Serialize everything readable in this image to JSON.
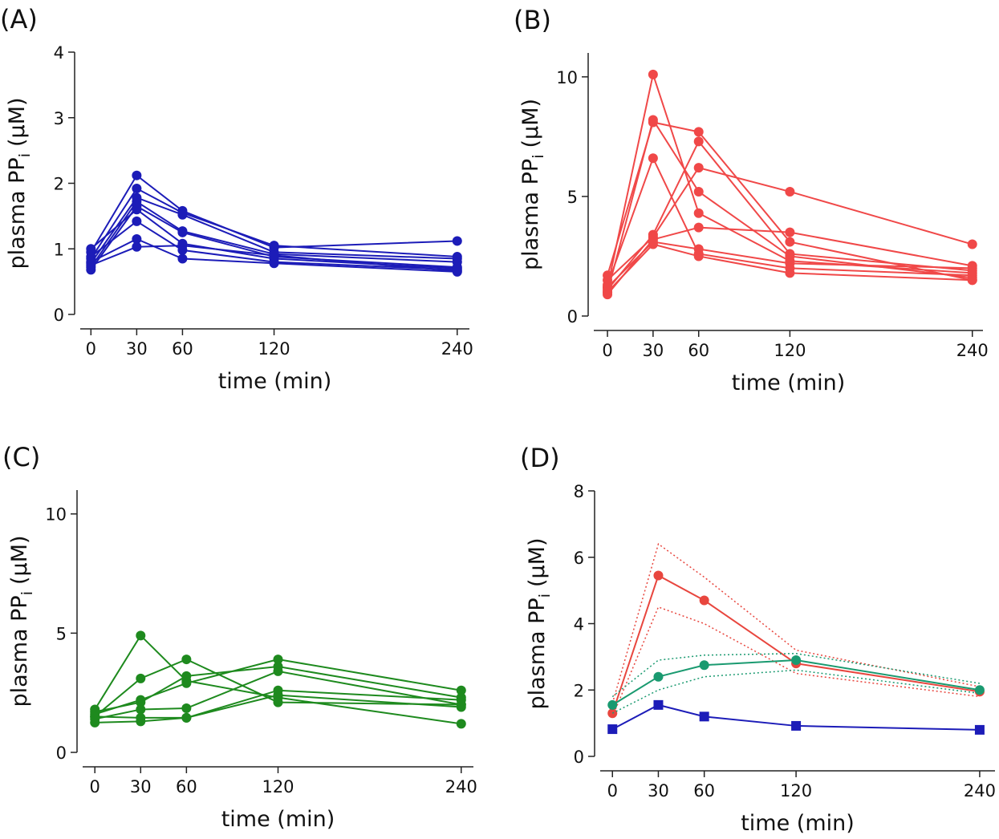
{
  "chart_data": [
    {
      "type": "line",
      "label": "(A)",
      "xlabel": "time (min)",
      "ylabel": [
        "plasma PP",
        "i",
        "(µM)"
      ],
      "x": [
        0,
        30,
        60,
        120,
        240
      ],
      "xlim": [
        -7,
        248
      ],
      "xticks": [
        0,
        30,
        60,
        120,
        240
      ],
      "ylim": [
        0,
        4
      ],
      "yticks": [
        0,
        1,
        2,
        3,
        4
      ],
      "series": [
        {
          "color": "#1c1cb8",
          "values": [
            0.95,
            2.12,
            1.58,
            1.02,
            1.12
          ]
        },
        {
          "color": "#1c1cb8",
          "values": [
            0.85,
            1.92,
            1.55,
            1.05,
            0.88
          ]
        },
        {
          "color": "#1c1cb8",
          "values": [
            0.78,
            1.78,
            1.52,
            0.95,
            0.85
          ]
        },
        {
          "color": "#1c1cb8",
          "values": [
            0.72,
            1.72,
            1.27,
            0.92,
            0.8
          ]
        },
        {
          "color": "#1c1cb8",
          "values": [
            0.68,
            1.65,
            1.25,
            0.88,
            0.72
          ]
        },
        {
          "color": "#1c1cb8",
          "values": [
            1.0,
            1.6,
            1.08,
            0.85,
            0.7
          ]
        },
        {
          "color": "#1c1cb8",
          "values": [
            0.88,
            1.42,
            0.98,
            0.8,
            0.68
          ]
        },
        {
          "color": "#1c1cb8",
          "values": [
            0.8,
            1.15,
            0.85,
            0.78,
            0.65
          ]
        },
        {
          "color": "#1c1cb8",
          "values": [
            0.75,
            1.03,
            1.05,
            0.9,
            0.66
          ]
        }
      ]
    },
    {
      "type": "line",
      "label": "(B)",
      "xlabel": "time (min)",
      "ylabel": [
        "plasma PP",
        "i",
        "(µM)"
      ],
      "x": [
        0,
        30,
        60,
        120,
        240
      ],
      "xlim": [
        -9,
        247
      ],
      "xticks": [
        0,
        30,
        60,
        120,
        240
      ],
      "ylim": [
        0,
        11
      ],
      "yticks": [
        0,
        5,
        10
      ],
      "series": [
        {
          "color": "#f04848",
          "values": [
            1.2,
            10.1,
            4.3,
            2.3,
            1.8
          ]
        },
        {
          "color": "#f04848",
          "values": [
            1.7,
            8.1,
            7.7,
            3.1,
            1.5
          ]
        },
        {
          "color": "#f04848",
          "values": [
            1.0,
            8.2,
            5.2,
            2.5,
            1.6
          ]
        },
        {
          "color": "#f04848",
          "values": [
            1.3,
            6.6,
            2.6,
            2.0,
            1.7
          ]
        },
        {
          "color": "#f04848",
          "values": [
            1.1,
            3.4,
            7.3,
            2.6,
            1.9
          ]
        },
        {
          "color": "#f04848",
          "values": [
            1.5,
            3.3,
            6.2,
            5.2,
            3.0
          ]
        },
        {
          "color": "#f04848",
          "values": [
            0.9,
            3.2,
            3.7,
            3.5,
            2.1
          ]
        },
        {
          "color": "#f04848",
          "values": [
            1.2,
            3.1,
            2.8,
            2.2,
            2.0
          ]
        },
        {
          "color": "#f04848",
          "values": [
            1.0,
            3.0,
            2.5,
            1.8,
            1.5
          ]
        }
      ]
    },
    {
      "type": "line",
      "label": "(C)",
      "xlabel": "time (min)",
      "ylabel": [
        "plasma PP",
        "i",
        "(µM)"
      ],
      "x": [
        0,
        30,
        60,
        120,
        240
      ],
      "xlim": [
        -8,
        248
      ],
      "xticks": [
        0,
        30,
        60,
        120,
        240
      ],
      "ylim": [
        0,
        11
      ],
      "yticks": [
        0,
        5,
        10
      ],
      "series": [
        {
          "color": "#1e8a1e",
          "values": [
            1.8,
            4.9,
            3.0,
            2.3,
            1.2
          ]
        },
        {
          "color": "#1e8a1e",
          "values": [
            1.5,
            3.1,
            3.9,
            2.1,
            2.0
          ]
        },
        {
          "color": "#1e8a1e",
          "values": [
            1.6,
            2.2,
            2.9,
            3.9,
            2.6
          ]
        },
        {
          "color": "#1e8a1e",
          "values": [
            1.7,
            2.1,
            3.2,
            3.6,
            2.3
          ]
        },
        {
          "color": "#1e8a1e",
          "values": [
            1.4,
            1.8,
            1.85,
            3.4,
            2.0
          ]
        },
        {
          "color": "#1e8a1e",
          "values": [
            1.25,
            1.3,
            1.45,
            2.6,
            2.2
          ]
        },
        {
          "color": "#1e8a1e",
          "values": [
            1.5,
            1.45,
            1.45,
            2.4,
            1.9
          ]
        }
      ]
    },
    {
      "type": "line",
      "label": "(D)",
      "xlabel": "time (min)",
      "ylabel": [
        "plasma PP",
        "i",
        "(µM)"
      ],
      "x": [
        0,
        30,
        60,
        120,
        240
      ],
      "xlim": [
        -8,
        250
      ],
      "xticks": [
        0,
        30,
        60,
        120,
        240
      ],
      "ylim": [
        0,
        8
      ],
      "yticks": [
        0,
        2,
        4,
        6,
        8
      ],
      "series": [
        {
          "color": "#e8463e",
          "values": [
            1.3,
            5.45,
            4.7,
            2.8,
            1.95
          ],
          "upper": [
            1.6,
            6.4,
            5.4,
            3.2,
            2.1
          ],
          "lower": [
            1.2,
            4.5,
            4.0,
            2.5,
            1.8
          ]
        },
        {
          "color": "#1a9a70",
          "values": [
            1.55,
            2.4,
            2.75,
            2.9,
            2.0
          ],
          "upper": [
            1.8,
            2.9,
            3.05,
            3.1,
            2.2
          ],
          "lower": [
            1.3,
            2.0,
            2.4,
            2.6,
            1.9
          ]
        },
        {
          "color": "#1c1cb8",
          "marker": "square",
          "values": [
            0.82,
            1.55,
            1.2,
            0.92,
            0.8
          ]
        }
      ]
    }
  ]
}
